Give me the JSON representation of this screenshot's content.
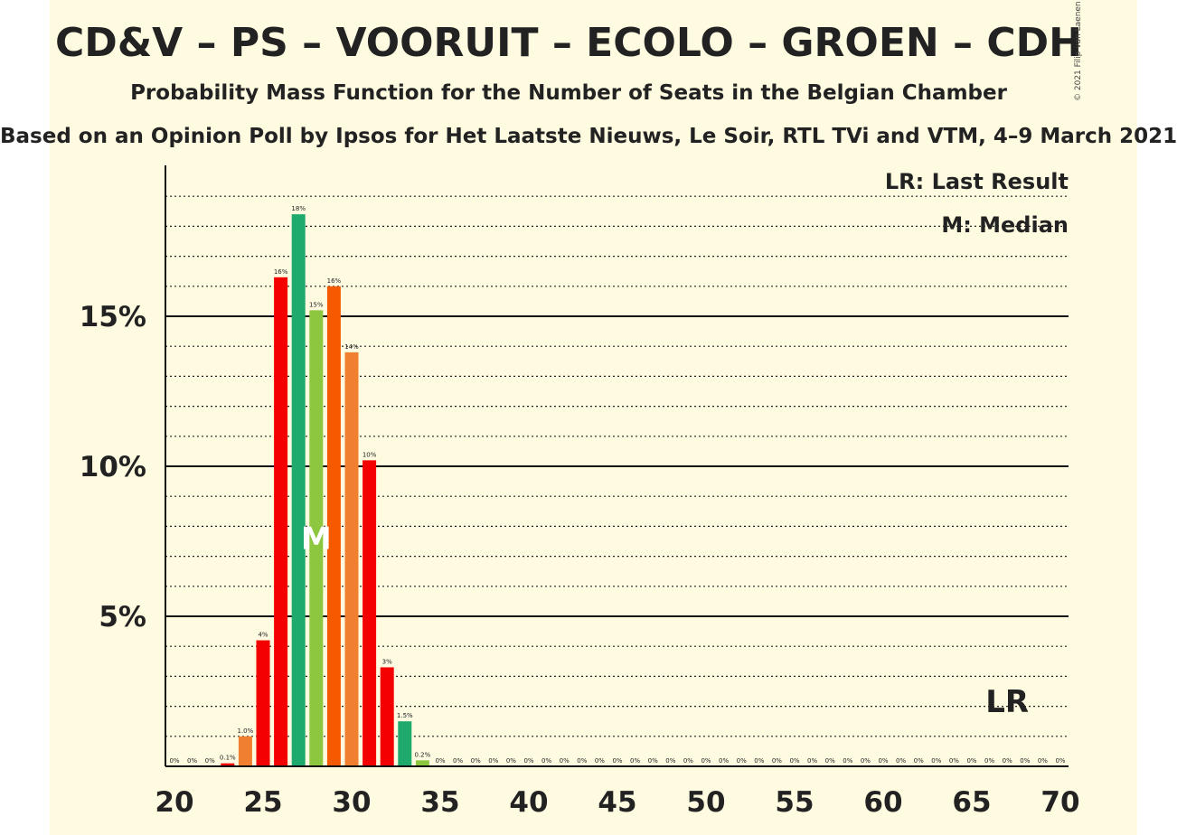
{
  "header": {
    "title": "CD&V – PS – VOORUIT – ECOLO – GROEN – CDH",
    "subtitle": "Probability Mass Function for the Number of Seats in the Belgian Chamber",
    "source": "Based on an Opinion Poll by Ipsos for Het Laatste Nieuws, Le Soir, RTL TVi and VTM, 4–9 March 2021",
    "copyright": "© 2021 Filip van Laenen"
  },
  "legend": {
    "last_result": "LR: Last Result",
    "median": "M: Median"
  },
  "chart_data": {
    "type": "bar",
    "x": [
      20,
      21,
      22,
      23,
      24,
      25,
      26,
      27,
      28,
      29,
      30,
      31,
      32,
      33,
      34,
      35,
      36,
      37,
      38,
      39,
      40,
      41,
      42,
      43,
      44,
      45,
      46,
      47,
      48,
      49,
      50,
      51,
      52,
      53,
      54,
      55,
      56,
      57,
      58,
      59,
      60,
      61,
      62,
      63,
      64,
      65,
      66,
      67,
      68,
      69,
      70
    ],
    "values": [
      0,
      0,
      0,
      0.1,
      1.0,
      4.2,
      16.3,
      18.4,
      15.2,
      16.0,
      13.8,
      10.2,
      3.3,
      1.5,
      0.2,
      0,
      0,
      0,
      0,
      0,
      0,
      0,
      0,
      0,
      0,
      0,
      0,
      0,
      0,
      0,
      0,
      0,
      0,
      0,
      0,
      0,
      0,
      0,
      0,
      0,
      0,
      0,
      0,
      0,
      0,
      0,
      0,
      0,
      0,
      0,
      0
    ],
    "data_labels": [
      "0%",
      "0%",
      "0%",
      "0.1%",
      "1.0%",
      "4%",
      "16%",
      "18%",
      "15%",
      "16%",
      "14%",
      "10%",
      "3%",
      "1.5%",
      "0.2%",
      "0%",
      "0%",
      "0%",
      "0%",
      "0%",
      "0%",
      "0%",
      "0%",
      "0%",
      "0%",
      "0%",
      "0%",
      "0%",
      "0%",
      "0%",
      "0%",
      "0%",
      "0%",
      "0%",
      "0%",
      "0%",
      "0%",
      "0%",
      "0%",
      "0%",
      "0%",
      "0%",
      "0%",
      "0%",
      "0%",
      "0%",
      "0%",
      "0%",
      "0%",
      "0%",
      "0%"
    ],
    "bar_colors": [
      "#f30000",
      "#e85d0d",
      "#f08030",
      "#f30000",
      "#f08030",
      "#f30000",
      "#f30000",
      "#1eaa6c",
      "#8dc63f",
      "#f55a00",
      "#f08030",
      "#f30000",
      "#f30000",
      "#1eaa6c",
      "#8dc63f",
      "#f55a00",
      "#f08030",
      "#f30000",
      "#f30000",
      "#1eaa6c",
      "#8dc63f",
      "#f55a00",
      "#f08030",
      "#f30000",
      "#f30000",
      "#1eaa6c",
      "#8dc63f",
      "#f55a00",
      "#f08030",
      "#f30000",
      "#f30000",
      "#1eaa6c",
      "#8dc63f",
      "#f55a00",
      "#f08030",
      "#f30000",
      "#f30000",
      "#1eaa6c",
      "#8dc63f",
      "#f55a00",
      "#f08030",
      "#f30000",
      "#f30000",
      "#1eaa6c",
      "#8dc63f",
      "#f55a00",
      "#f08030",
      "#f30000",
      "#f30000",
      "#1eaa6c",
      "#8dc63f"
    ],
    "xticks": [
      20,
      25,
      30,
      35,
      40,
      45,
      50,
      55,
      60,
      65,
      70
    ],
    "xtick_labels": [
      "20",
      "25",
      "30",
      "35",
      "40",
      "45",
      "50",
      "55",
      "60",
      "65",
      "70"
    ],
    "yticks": [
      5,
      10,
      15
    ],
    "ytick_labels": [
      "5%",
      "10%",
      "15%"
    ],
    "ylim": [
      0,
      20
    ],
    "xlim": [
      20,
      70
    ],
    "median": 28,
    "median_label": "M",
    "last_result": 67,
    "last_result_label": "LR",
    "grid": true,
    "legend_position": "top-right"
  }
}
